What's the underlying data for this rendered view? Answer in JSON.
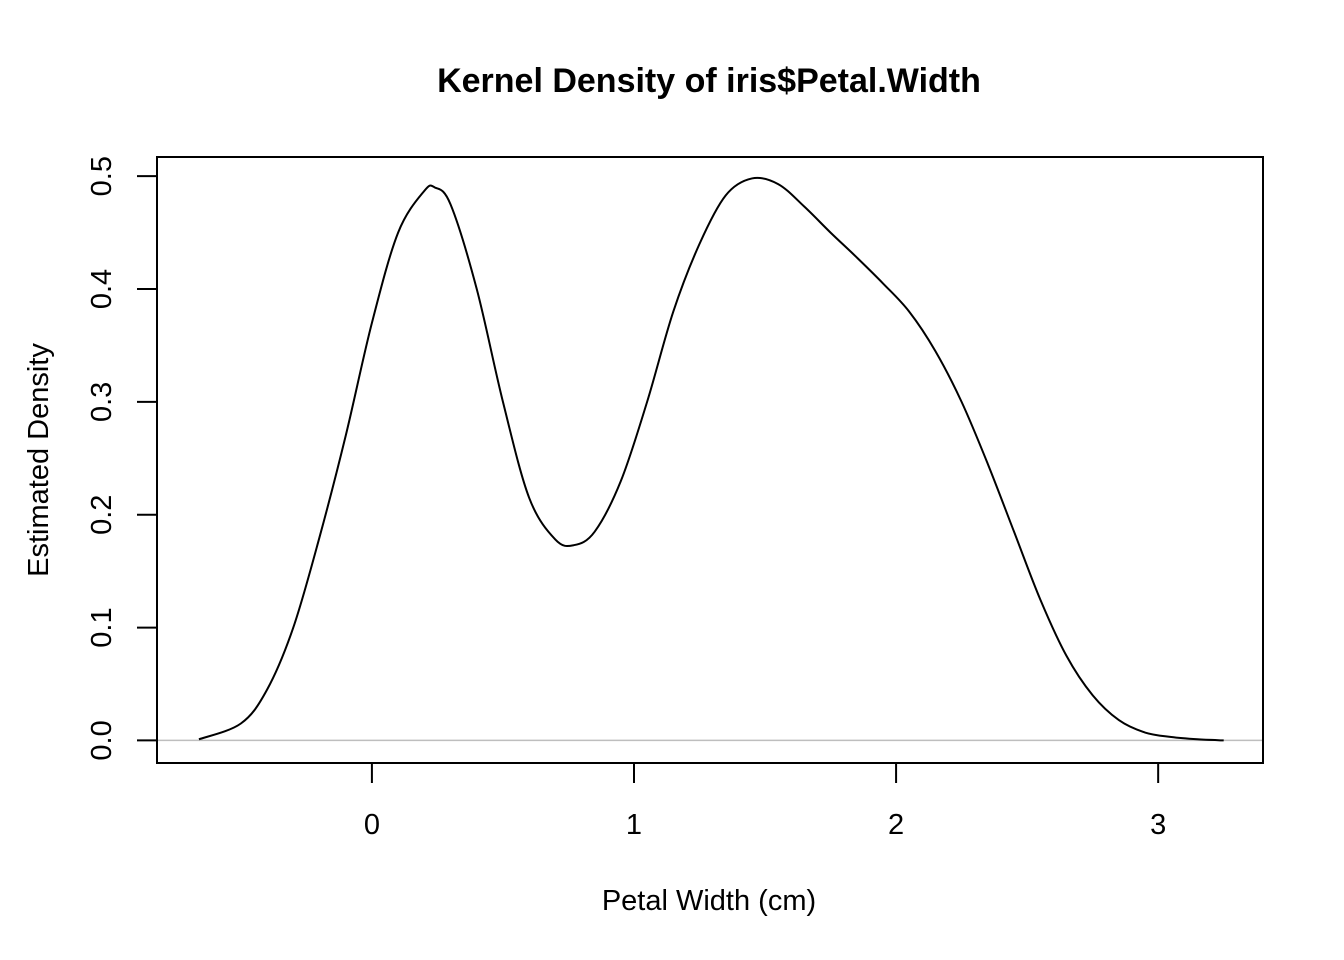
{
  "chart_data": {
    "type": "line",
    "title": "Kernel Density of iris$Petal.Width",
    "xlabel": "Petal Width (cm)",
    "ylabel": "Estimated Density",
    "xlim": [
      -0.82,
      3.4
    ],
    "ylim": [
      -0.02,
      0.517
    ],
    "x_ticks": [
      0,
      1,
      2,
      3
    ],
    "x_tick_labels": [
      "0",
      "1",
      "2",
      "3"
    ],
    "y_ticks": [
      0.0,
      0.1,
      0.2,
      0.3,
      0.4,
      0.5
    ],
    "y_tick_labels": [
      "0.0",
      "0.1",
      "0.2",
      "0.3",
      "0.4",
      "0.5"
    ],
    "baseline": 0,
    "baseline_color": "#bebebe",
    "line_color": "#000000",
    "grid": false,
    "series": [
      {
        "x": [
          -0.66,
          -0.5,
          -0.4,
          -0.3,
          -0.2,
          -0.1,
          0,
          0.1,
          0.2,
          0.24,
          0.3,
          0.4,
          0.5,
          0.6,
          0.7,
          0.77,
          0.85,
          0.95,
          1.05,
          1.15,
          1.25,
          1.35,
          1.45,
          1.55,
          1.65,
          1.75,
          1.85,
          1.95,
          2.05,
          2.15,
          2.25,
          2.35,
          2.45,
          2.55,
          2.65,
          2.75,
          2.85,
          2.95,
          3.05,
          3.15,
          3.25
        ],
        "y": [
          0.001,
          0.015,
          0.045,
          0.1,
          0.18,
          0.27,
          0.37,
          0.45,
          0.487,
          0.49,
          0.475,
          0.4,
          0.3,
          0.215,
          0.178,
          0.173,
          0.185,
          0.23,
          0.3,
          0.38,
          0.44,
          0.483,
          0.498,
          0.493,
          0.473,
          0.45,
          0.428,
          0.405,
          0.38,
          0.345,
          0.3,
          0.245,
          0.185,
          0.125,
          0.075,
          0.04,
          0.018,
          0.007,
          0.003,
          0.001,
          0.0
        ]
      }
    ]
  }
}
